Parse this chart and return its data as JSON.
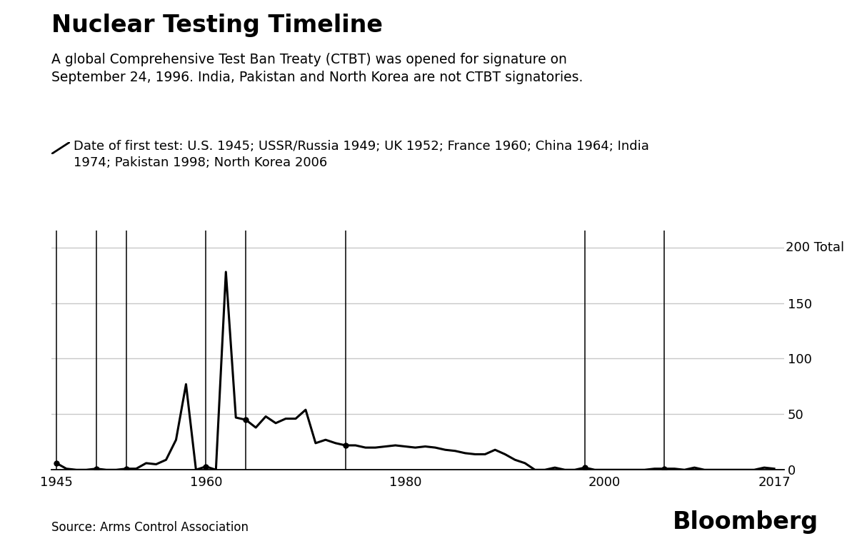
{
  "title": "Nuclear Testing Timeline",
  "subtitle": "A global Comprehensive Test Ban Treaty (CTBT) was opened for signature on\nSeptember 24, 1996. India, Pakistan and North Korea are not CTBT signatories.",
  "legend_text": "Date of first test: U.S. 1945; USSR/Russia 1949; UK 1952; France 1960; China 1964; India\n1974; Pakistan 1998; North Korea 2006",
  "source": "Source: Arms Control Association",
  "brand": "Bloomberg",
  "ylabel_top": "200 Total",
  "ylim": [
    0,
    215
  ],
  "yticks": [
    0,
    50,
    100,
    150,
    200
  ],
  "xlim": [
    1944.5,
    2018
  ],
  "xticks": [
    1945,
    1960,
    1980,
    2000,
    2017
  ],
  "first_test_lines": [
    1945,
    1949,
    1952,
    1960,
    1964,
    1974,
    1998,
    2006
  ],
  "years": [
    1945,
    1946,
    1947,
    1948,
    1949,
    1950,
    1951,
    1952,
    1953,
    1954,
    1955,
    1956,
    1957,
    1958,
    1959,
    1960,
    1961,
    1962,
    1963,
    1964,
    1965,
    1966,
    1967,
    1968,
    1969,
    1970,
    1971,
    1972,
    1973,
    1974,
    1975,
    1976,
    1977,
    1978,
    1979,
    1980,
    1981,
    1982,
    1983,
    1984,
    1985,
    1986,
    1987,
    1988,
    1989,
    1990,
    1991,
    1992,
    1993,
    1994,
    1995,
    1996,
    1997,
    1998,
    1999,
    2000,
    2001,
    2002,
    2003,
    2004,
    2005,
    2006,
    2007,
    2008,
    2009,
    2010,
    2011,
    2012,
    2013,
    2014,
    2015,
    2016,
    2017
  ],
  "tests": [
    6,
    1,
    0,
    0,
    1,
    0,
    0,
    1,
    1,
    6,
    5,
    9,
    27,
    77,
    0,
    3,
    0,
    178,
    47,
    45,
    38,
    48,
    42,
    46,
    46,
    54,
    24,
    27,
    24,
    22,
    22,
    20,
    20,
    21,
    22,
    21,
    20,
    21,
    20,
    18,
    17,
    15,
    14,
    14,
    18,
    14,
    9,
    6,
    0,
    0,
    2,
    0,
    0,
    2,
    0,
    0,
    0,
    0,
    0,
    0,
    1,
    1,
    1,
    0,
    2,
    0,
    0,
    0,
    0,
    0,
    0,
    2,
    1
  ],
  "marker_years": [
    1945,
    1949,
    1952,
    1960,
    1964,
    1974,
    1998,
    2006
  ],
  "line_color": "#000000",
  "marker_color": "#000000",
  "vline_color": "#000000",
  "grid_color": "#c8c8c8",
  "background_color": "#ffffff",
  "title_fontsize": 24,
  "subtitle_fontsize": 13.5,
  "legend_fontsize": 13,
  "tick_fontsize": 13,
  "source_fontsize": 12,
  "brand_fontsize": 24
}
